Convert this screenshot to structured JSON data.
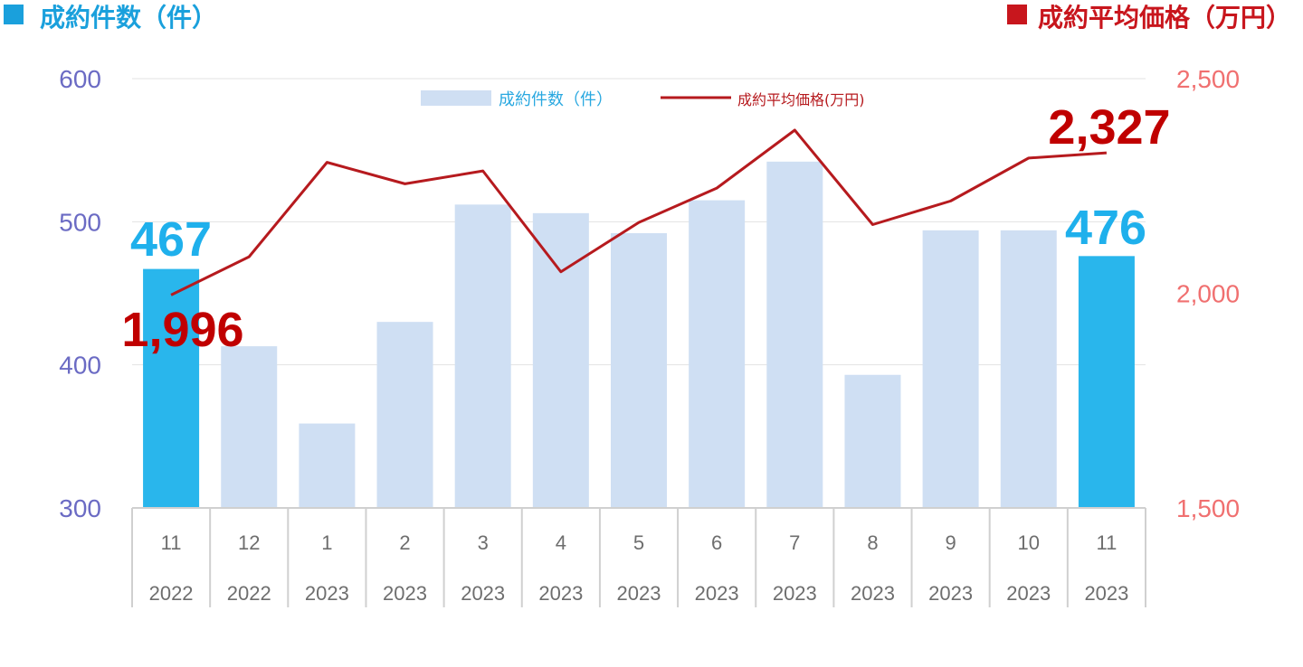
{
  "chart_data": {
    "type": "bar",
    "title_left": "成約件数（件）",
    "title_right": "成約平均価格（万円）",
    "categories": [
      {
        "month": "11",
        "year": "2022"
      },
      {
        "month": "12",
        "year": "2022"
      },
      {
        "month": "1",
        "year": "2023"
      },
      {
        "month": "2",
        "year": "2023"
      },
      {
        "month": "3",
        "year": "2023"
      },
      {
        "month": "4",
        "year": "2023"
      },
      {
        "month": "5",
        "year": "2023"
      },
      {
        "month": "6",
        "year": "2023"
      },
      {
        "month": "7",
        "year": "2023"
      },
      {
        "month": "8",
        "year": "2023"
      },
      {
        "month": "9",
        "year": "2023"
      },
      {
        "month": "10",
        "year": "2023"
      },
      {
        "month": "11",
        "year": "2023"
      }
    ],
    "series": [
      {
        "name": "成約件数（件）",
        "type": "bar",
        "axis": "left",
        "values": [
          467,
          413,
          359,
          430,
          512,
          506,
          492,
          515,
          542,
          393,
          494,
          494,
          476
        ],
        "highlight_indices": [
          0,
          12
        ]
      },
      {
        "name": "成約平均価格(万円)",
        "type": "line",
        "axis": "right",
        "values": [
          1996,
          2085,
          2305,
          2255,
          2285,
          2050,
          2165,
          2245,
          2380,
          2160,
          2215,
          2315,
          2327
        ]
      }
    ],
    "y_left": {
      "min": 300,
      "max": 600,
      "ticks": [
        600,
        500,
        400,
        300
      ]
    },
    "y_right": {
      "min": 1500,
      "max": 2500,
      "ticks": [
        "2,500",
        "2,000",
        "1,500"
      ],
      "tick_values": [
        2500,
        2000,
        1500
      ]
    },
    "data_labels": {
      "bar_first": "467",
      "bar_last": "476",
      "line_first": "1,996",
      "line_last": "2,327"
    },
    "legend_position": "top-center",
    "grid": true,
    "colors": {
      "bar": "#cfdff3",
      "bar_highlight": "#29b6ec",
      "line": "#b61a1e",
      "left_axis": "#6b6bc4",
      "right_axis": "#f07070",
      "title_left": "#1aa0dc",
      "title_right": "#c8161d",
      "legend_bar_text": "#29a8e0",
      "legend_line_text": "#b61a1e",
      "label_bar": "#1fb0ec",
      "label_line": "#c00000"
    }
  }
}
